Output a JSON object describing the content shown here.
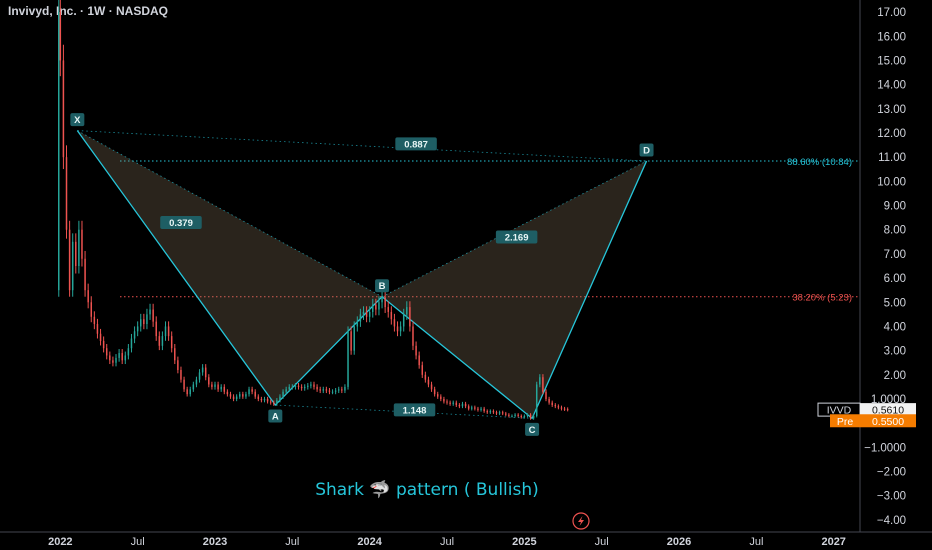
{
  "header": {
    "symbol_title": "Invivyd, Inc. · 1W · NASDAQ"
  },
  "chart_data": {
    "type": "line",
    "title": "Shark 🦈 pattern ( Bullish)",
    "y_ticks": [
      "17.00",
      "16.00",
      "15.00",
      "14.00",
      "13.00",
      "12.00",
      "11.00",
      "10.00",
      "9.00",
      "8.00",
      "7.00",
      "6.00",
      "5.00",
      "4.00",
      "3.00",
      "2.00",
      "1.0000",
      "−1.0000",
      "−2.00",
      "−3.00",
      "−4.00"
    ],
    "x_ticks": [
      {
        "label": "2022",
        "t": 2022.0,
        "bold": true
      },
      {
        "label": "Jul",
        "t": 2022.5,
        "bold": false
      },
      {
        "label": "2023",
        "t": 2023.0,
        "bold": true
      },
      {
        "label": "Jul",
        "t": 2023.5,
        "bold": false
      },
      {
        "label": "2024",
        "t": 2024.0,
        "bold": true
      },
      {
        "label": "Jul",
        "t": 2024.5,
        "bold": false
      },
      {
        "label": "2025",
        "t": 2025.0,
        "bold": true
      },
      {
        "label": "Jul",
        "t": 2025.5,
        "bold": false
      },
      {
        "label": "2026",
        "t": 2026.0,
        "bold": true
      },
      {
        "label": "Jul",
        "t": 2026.5,
        "bold": false
      },
      {
        "label": "2027",
        "t": 2027.0,
        "bold": true
      }
    ],
    "pattern_points": [
      {
        "label": "X",
        "t": 2022.11,
        "price": 12.1
      },
      {
        "label": "A",
        "t": 2023.39,
        "price": 0.75
      },
      {
        "label": "B",
        "t": 2024.08,
        "price": 5.23
      },
      {
        "label": "C",
        "t": 2025.05,
        "price": 0.2
      },
      {
        "label": "D",
        "t": 2025.79,
        "price": 10.84
      }
    ],
    "ratios": [
      {
        "label": "0.887",
        "t": 2024.3,
        "price": 11.55
      },
      {
        "label": "0.379",
        "t": 2022.78,
        "price": 8.3
      },
      {
        "label": "2.169",
        "t": 2024.95,
        "price": 7.7
      },
      {
        "label": "1.148",
        "t": 2024.29,
        "price": 0.55
      }
    ],
    "levels": [
      {
        "label": "88.60% (10.84)",
        "price": 10.84,
        "color": "#26c6da"
      },
      {
        "label": "38.20% (5.23)",
        "price": 5.23,
        "color": "#ef5350"
      }
    ],
    "price_tags": [
      {
        "name": "IVVD",
        "value": "0.5610",
        "price": 0.561
      },
      {
        "name": "Pre",
        "value": "0.5500",
        "price": 0.1
      }
    ],
    "price_series": [
      [
        2021.98,
        5.5
      ],
      [
        2021.99,
        17.0
      ],
      [
        2022.0,
        15.0
      ],
      [
        2022.02,
        11.0
      ],
      [
        2022.04,
        8.0
      ],
      [
        2022.06,
        5.5
      ],
      [
        2022.08,
        7.5
      ],
      [
        2022.1,
        6.5
      ],
      [
        2022.12,
        8.0
      ],
      [
        2022.14,
        6.8
      ],
      [
        2022.16,
        5.5
      ],
      [
        2022.18,
        5.0
      ],
      [
        2022.2,
        4.4
      ],
      [
        2022.22,
        4.1
      ],
      [
        2022.24,
        3.7
      ],
      [
        2022.26,
        3.4
      ],
      [
        2022.28,
        3.1
      ],
      [
        2022.3,
        2.8
      ],
      [
        2022.32,
        2.6
      ],
      [
        2022.34,
        2.5
      ],
      [
        2022.36,
        2.7
      ],
      [
        2022.38,
        2.9
      ],
      [
        2022.4,
        2.6
      ],
      [
        2022.42,
        2.8
      ],
      [
        2022.44,
        3.1
      ],
      [
        2022.46,
        3.5
      ],
      [
        2022.48,
        3.8
      ],
      [
        2022.5,
        4.0
      ],
      [
        2022.52,
        4.3
      ],
      [
        2022.54,
        4.1
      ],
      [
        2022.56,
        4.5
      ],
      [
        2022.58,
        4.7
      ],
      [
        2022.6,
        4.2
      ],
      [
        2022.62,
        3.6
      ],
      [
        2022.64,
        3.2
      ],
      [
        2022.66,
        3.6
      ],
      [
        2022.68,
        4.0
      ],
      [
        2022.7,
        3.6
      ],
      [
        2022.72,
        3.1
      ],
      [
        2022.74,
        2.6
      ],
      [
        2022.76,
        2.2
      ],
      [
        2022.78,
        1.8
      ],
      [
        2022.8,
        1.4
      ],
      [
        2022.82,
        1.2
      ],
      [
        2022.84,
        1.4
      ],
      [
        2022.86,
        1.6
      ],
      [
        2022.88,
        1.8
      ],
      [
        2022.9,
        2.1
      ],
      [
        2022.92,
        2.3
      ],
      [
        2022.94,
        1.9
      ],
      [
        2022.96,
        1.6
      ],
      [
        2022.98,
        1.5
      ],
      [
        2023.0,
        1.6
      ],
      [
        2023.02,
        1.4
      ],
      [
        2023.04,
        1.5
      ],
      [
        2023.06,
        1.3
      ],
      [
        2023.08,
        1.2
      ],
      [
        2023.1,
        1.1
      ],
      [
        2023.12,
        1.0
      ],
      [
        2023.14,
        1.1
      ],
      [
        2023.16,
        1.2
      ],
      [
        2023.18,
        1.1
      ],
      [
        2023.2,
        1.2
      ],
      [
        2023.22,
        1.4
      ],
      [
        2023.24,
        1.3
      ],
      [
        2023.26,
        1.1
      ],
      [
        2023.28,
        1.0
      ],
      [
        2023.3,
        0.95
      ],
      [
        2023.32,
        1.0
      ],
      [
        2023.34,
        0.9
      ],
      [
        2023.36,
        0.85
      ],
      [
        2023.38,
        0.8
      ],
      [
        2023.4,
        0.95
      ],
      [
        2023.42,
        1.1
      ],
      [
        2023.44,
        1.3
      ],
      [
        2023.46,
        1.4
      ],
      [
        2023.48,
        1.5
      ],
      [
        2023.5,
        1.5
      ],
      [
        2023.52,
        1.55
      ],
      [
        2023.54,
        1.5
      ],
      [
        2023.56,
        1.45
      ],
      [
        2023.58,
        1.5
      ],
      [
        2023.6,
        1.55
      ],
      [
        2023.62,
        1.6
      ],
      [
        2023.64,
        1.5
      ],
      [
        2023.66,
        1.4
      ],
      [
        2023.68,
        1.35
      ],
      [
        2023.7,
        1.4
      ],
      [
        2023.72,
        1.35
      ],
      [
        2023.74,
        1.3
      ],
      [
        2023.76,
        1.3
      ],
      [
        2023.78,
        1.35
      ],
      [
        2023.8,
        1.4
      ],
      [
        2023.82,
        1.35
      ],
      [
        2023.84,
        1.5
      ],
      [
        2023.86,
        3.8
      ],
      [
        2023.88,
        3.0
      ],
      [
        2023.9,
        4.0
      ],
      [
        2023.92,
        4.2
      ],
      [
        2023.94,
        4.5
      ],
      [
        2023.96,
        4.6
      ],
      [
        2023.98,
        4.4
      ],
      [
        2024.0,
        4.6
      ],
      [
        2024.02,
        4.9
      ],
      [
        2024.04,
        4.7
      ],
      [
        2024.06,
        5.0
      ],
      [
        2024.08,
        5.2
      ],
      [
        2024.1,
        4.8
      ],
      [
        2024.12,
        4.6
      ],
      [
        2024.14,
        4.3
      ],
      [
        2024.16,
        4.0
      ],
      [
        2024.18,
        3.8
      ],
      [
        2024.2,
        4.0
      ],
      [
        2024.22,
        4.5
      ],
      [
        2024.24,
        4.8
      ],
      [
        2024.26,
        4.0
      ],
      [
        2024.28,
        3.2
      ],
      [
        2024.3,
        2.8
      ],
      [
        2024.32,
        2.4
      ],
      [
        2024.34,
        2.0
      ],
      [
        2024.36,
        1.8
      ],
      [
        2024.38,
        1.6
      ],
      [
        2024.4,
        1.4
      ],
      [
        2024.42,
        1.2
      ],
      [
        2024.44,
        1.1
      ],
      [
        2024.46,
        1.0
      ],
      [
        2024.48,
        0.9
      ],
      [
        2024.5,
        0.85
      ],
      [
        2024.52,
        0.8
      ],
      [
        2024.54,
        0.85
      ],
      [
        2024.56,
        0.75
      ],
      [
        2024.58,
        0.7
      ],
      [
        2024.6,
        0.8
      ],
      [
        2024.62,
        0.7
      ],
      [
        2024.64,
        0.6
      ],
      [
        2024.66,
        0.65
      ],
      [
        2024.68,
        0.6
      ],
      [
        2024.7,
        0.55
      ],
      [
        2024.72,
        0.6
      ],
      [
        2024.74,
        0.5
      ],
      [
        2024.76,
        0.45
      ],
      [
        2024.78,
        0.5
      ],
      [
        2024.8,
        0.45
      ],
      [
        2024.82,
        0.4
      ],
      [
        2024.84,
        0.45
      ],
      [
        2024.86,
        0.4
      ],
      [
        2024.88,
        0.35
      ],
      [
        2024.9,
        0.3
      ],
      [
        2024.92,
        0.3
      ],
      [
        2024.94,
        0.35
      ],
      [
        2024.96,
        0.3
      ],
      [
        2024.98,
        0.25
      ],
      [
        2025.0,
        0.3
      ],
      [
        2025.02,
        0.35
      ],
      [
        2025.04,
        0.2
      ],
      [
        2025.06,
        0.3
      ],
      [
        2025.08,
        1.6
      ],
      [
        2025.1,
        1.9
      ],
      [
        2025.12,
        1.3
      ],
      [
        2025.14,
        1.0
      ],
      [
        2025.16,
        0.85
      ],
      [
        2025.18,
        0.75
      ],
      [
        2025.2,
        0.7
      ],
      [
        2025.22,
        0.65
      ],
      [
        2025.24,
        0.6
      ],
      [
        2025.26,
        0.58
      ],
      [
        2025.28,
        0.56
      ]
    ],
    "ylim": [
      -4.5,
      17.5
    ],
    "xlim": [
      2021.61,
      2027.17
    ],
    "colors": {
      "up": "#26a69a",
      "down": "#ef5350",
      "pattern_line": "#26c6da",
      "fill": "rgba(150,130,100,0.28)",
      "label_bg": "#1e5e64",
      "title": "#26c6da",
      "pre_tag": "#f57c00",
      "level_red": "#ef5350"
    }
  },
  "icons": {
    "lightning": "lightning-icon"
  }
}
